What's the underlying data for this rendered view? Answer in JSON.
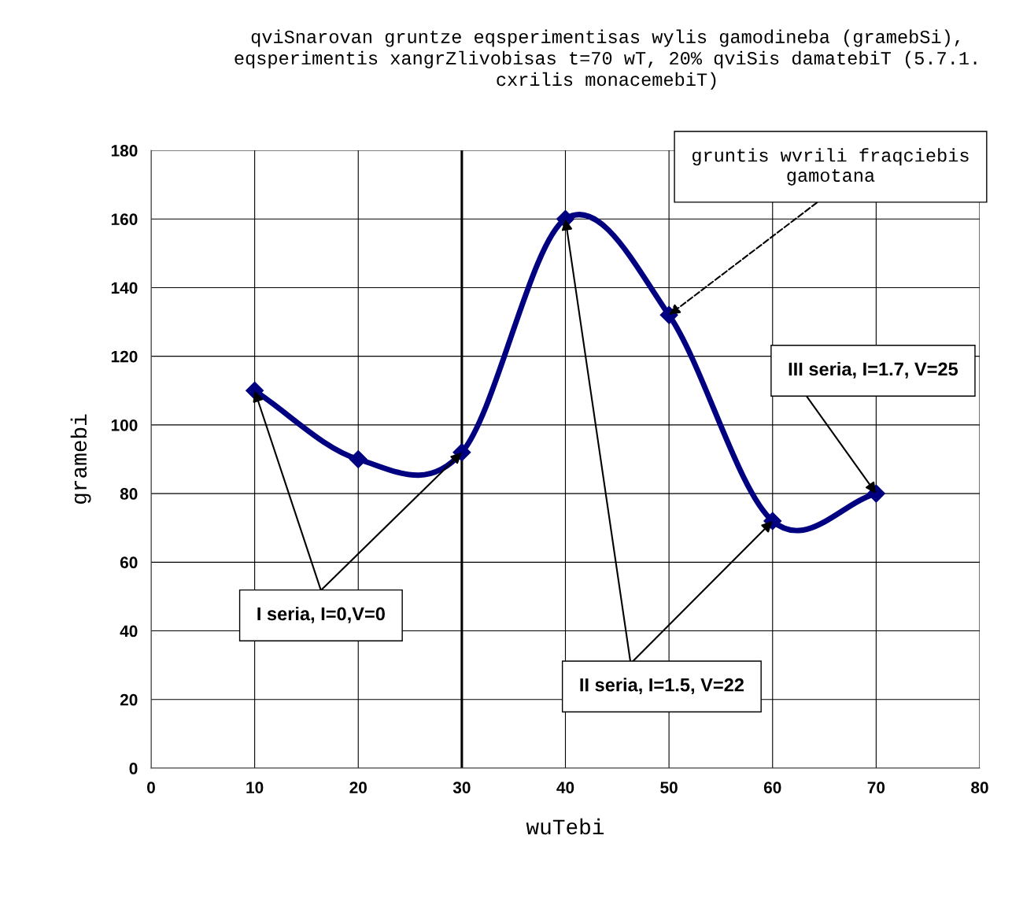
{
  "chart_data": {
    "type": "line",
    "title": "qviSnarovan gruntze eqsperimentisas wylis gamodineba (gramebSi),\neqsperimentis xangrZlivobisas t=70 wT, 20% qviSis damatebiT (5.7.1.\ncxrilis monacemebiT)",
    "xlabel": "wuTebi",
    "ylabel": "gramebi",
    "x": [
      10,
      20,
      30,
      40,
      50,
      60,
      70
    ],
    "series": [
      {
        "color": "#000080",
        "values": [
          110,
          90,
          92,
          160,
          132,
          72,
          80
        ]
      }
    ],
    "xlim": [
      0,
      80
    ],
    "xticks": [
      0,
      10,
      20,
      30,
      40,
      50,
      60,
      70,
      80
    ],
    "ylim": [
      0,
      180
    ],
    "yticks": [
      0,
      20,
      40,
      60,
      80,
      100,
      120,
      140,
      160,
      180
    ],
    "grid": true,
    "marker": "diamond",
    "line_style": "solid",
    "legend": false,
    "ref_lines": [
      {
        "axis": "x",
        "value": 30,
        "color": "#000000"
      }
    ],
    "annotations": [
      {
        "text": "I seria, I=0,V=0",
        "x": 10,
        "y": 110
      },
      {
        "text": "II seria, I=1.5, V=22",
        "x": 40,
        "y": 160
      },
      {
        "text": "III seria, I=1.7, V=25",
        "x": 70,
        "y": 80
      },
      {
        "text": "gruntis wvrili fraqciebis\ngamotana",
        "x": 50,
        "y": 132
      }
    ]
  }
}
